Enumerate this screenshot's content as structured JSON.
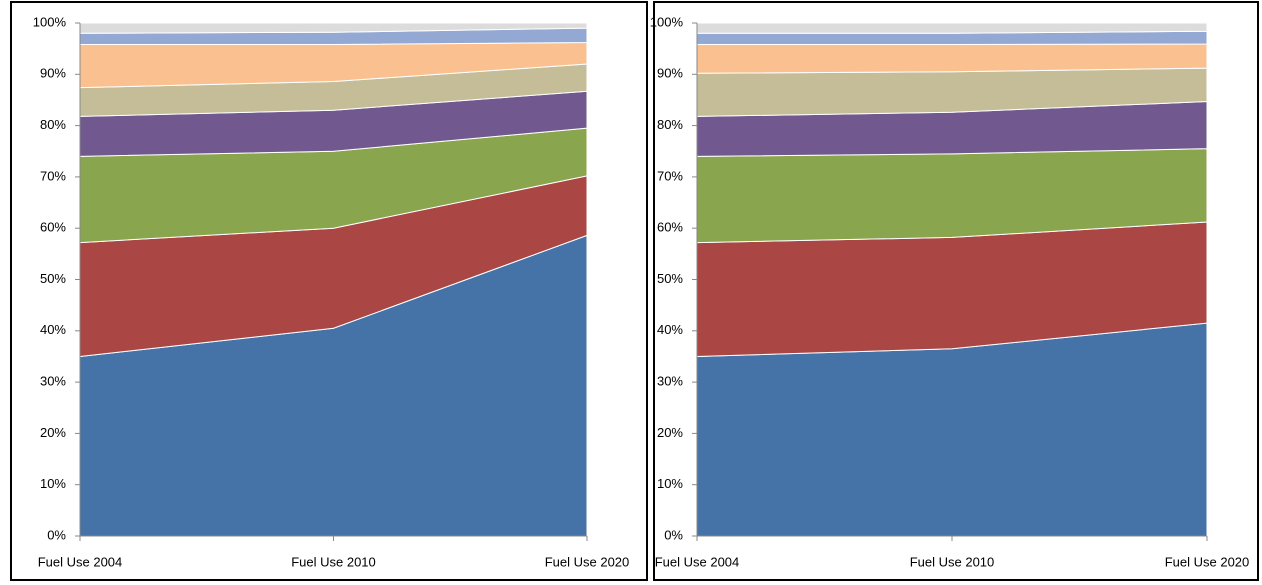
{
  "chart_data": [
    {
      "type": "stacked_area_percent",
      "categories": [
        "Fuel Use 2004",
        "Fuel Use 2010",
        "Fuel Use 2020"
      ],
      "ylim": [
        0,
        100
      ],
      "yticks": [
        {
          "value": 0,
          "label": "0%"
        },
        {
          "value": 10,
          "label": "10%"
        },
        {
          "value": 20,
          "label": "20%"
        },
        {
          "value": 30,
          "label": "30%"
        },
        {
          "value": 40,
          "label": "40%"
        },
        {
          "value": 50,
          "label": "50%"
        },
        {
          "value": 60,
          "label": "60%"
        },
        {
          "value": 70,
          "label": "70%"
        },
        {
          "value": 80,
          "label": "80%"
        },
        {
          "value": 90,
          "label": "90%"
        },
        {
          "value": 100,
          "label": "100%"
        }
      ],
      "series": [
        {
          "color": "#4572a7",
          "values": [
            35,
            40.5,
            58.6
          ]
        },
        {
          "color": "#aa4643",
          "values": [
            22.2,
            19.5,
            11.6
          ]
        },
        {
          "color": "#89a54e",
          "values": [
            16.8,
            15,
            9.3
          ]
        },
        {
          "color": "#71588f",
          "values": [
            7.8,
            8,
            7.2
          ]
        },
        {
          "color": "#c4bd97",
          "values": [
            5.6,
            5.6,
            5.3
          ]
        },
        {
          "color": "#fac090",
          "values": [
            8.4,
            7.2,
            4.2
          ]
        },
        {
          "color": "#93a9d4",
          "values": [
            2.2,
            2.4,
            2.8
          ]
        },
        {
          "color": "#dcdcdc",
          "values": [
            2,
            1.8,
            1
          ]
        }
      ]
    },
    {
      "type": "stacked_area_percent",
      "categories": [
        "Fuel Use 2004",
        "Fuel Use 2010",
        "Fuel Use 2020"
      ],
      "ylim": [
        0,
        100
      ],
      "yticks": [
        {
          "value": 0,
          "label": "0%"
        },
        {
          "value": 10,
          "label": "10%"
        },
        {
          "value": 20,
          "label": "20%"
        },
        {
          "value": 30,
          "label": "30%"
        },
        {
          "value": 40,
          "label": "40%"
        },
        {
          "value": 50,
          "label": "50%"
        },
        {
          "value": 60,
          "label": "60%"
        },
        {
          "value": 70,
          "label": "70%"
        },
        {
          "value": 80,
          "label": "80%"
        },
        {
          "value": 90,
          "label": "90%"
        },
        {
          "value": 100,
          "label": "100%"
        }
      ],
      "series": [
        {
          "color": "#4572a7",
          "values": [
            35,
            36.5,
            41.5
          ]
        },
        {
          "color": "#aa4643",
          "values": [
            22.2,
            21.7,
            19.7
          ]
        },
        {
          "color": "#89a54e",
          "values": [
            16.8,
            16.3,
            14.3
          ]
        },
        {
          "color": "#71588f",
          "values": [
            7.8,
            8.1,
            9.2
          ]
        },
        {
          "color": "#c4bd97",
          "values": [
            8.4,
            7.9,
            6.5
          ]
        },
        {
          "color": "#fac090",
          "values": [
            5.6,
            5.3,
            4.7
          ]
        },
        {
          "color": "#93a9d4",
          "values": [
            2.2,
            2.2,
            2.5
          ]
        },
        {
          "color": "#dcdcdc",
          "values": [
            2,
            2,
            1.6
          ]
        }
      ]
    }
  ]
}
